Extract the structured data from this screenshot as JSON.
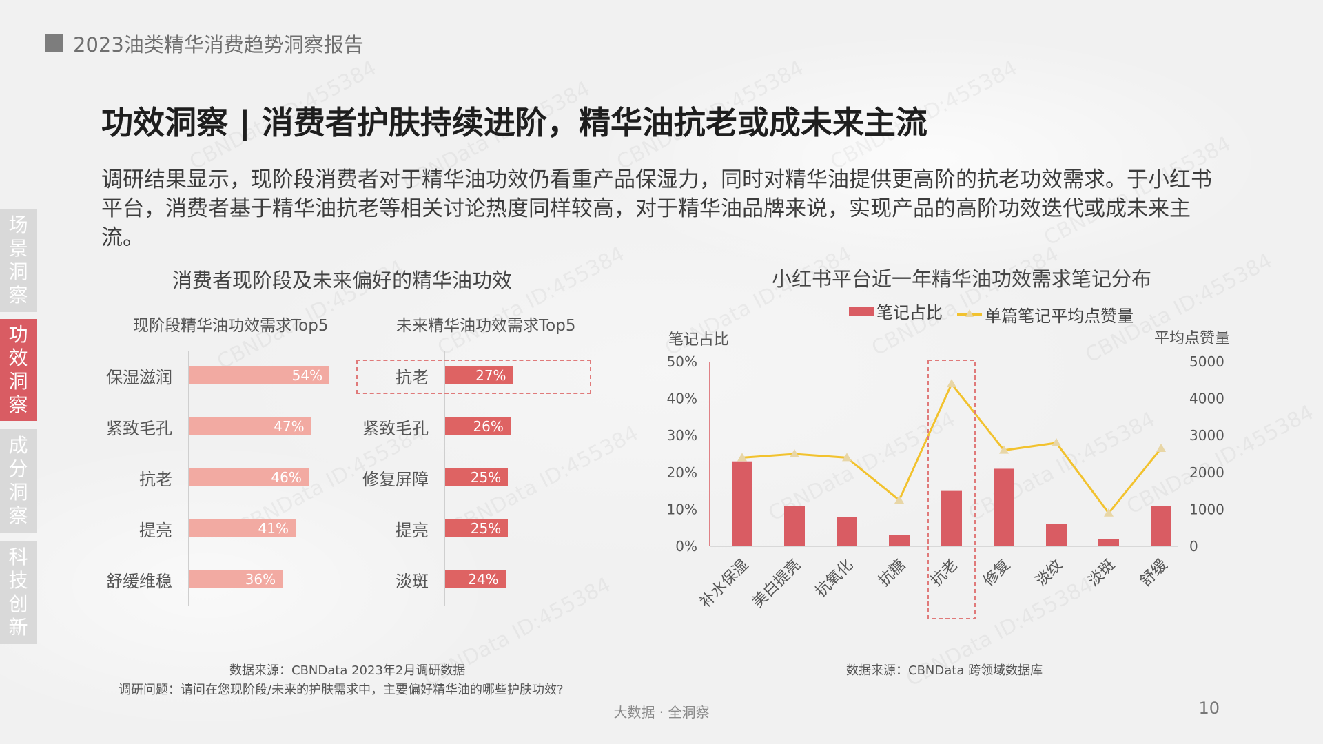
{
  "header": {
    "report_title": "2023油类精华消费趋势洞察报告"
  },
  "main_title": "功效洞察 | 消费者护肤持续进阶，精华油抗老或成未来主流",
  "intro_text": "调研结果显示，现阶段消费者对于精华油功效仍看重产品保湿力，同时对精华油提供更高阶的抗老功效需求。于小红书平台，消费者基于精华油抗老等相关讨论热度同样较高，对于精华油品牌来说，实现产品的高阶功效迭代或成未来主流。",
  "side_nav": [
    {
      "label": "场景洞察",
      "active": false
    },
    {
      "label": "功效洞察",
      "active": true
    },
    {
      "label": "成分洞察",
      "active": false
    },
    {
      "label": "科技创新",
      "active": false
    }
  ],
  "left_panel": {
    "source": "数据来源：CBNData 2023年2月调研数据",
    "question": "调研问题：请问在您现阶段/未来的护肤需求中，主要偏好精华油的哪些护肤功效?"
  },
  "right_panel": {
    "source": "数据来源：CBNData 跨领域数据库"
  },
  "chart_data": [
    {
      "type": "bar",
      "orientation": "horizontal",
      "title": "消费者现阶段及未来偏好的精华油功效",
      "subtitle": "现阶段精华油功效需求Top5",
      "categories": [
        "保湿滋润",
        "紧致毛孔",
        "抗老",
        "提亮",
        "舒缓维稳"
      ],
      "values": [
        54,
        47,
        46,
        41,
        36
      ],
      "value_labels": [
        "54%",
        "47%",
        "46%",
        "41%",
        "36%"
      ],
      "unit": "%",
      "color": "#f2aaa2"
    },
    {
      "type": "bar",
      "orientation": "horizontal",
      "subtitle": "未来精华油功效需求Top5",
      "categories": [
        "抗老",
        "紧致毛孔",
        "修复屏障",
        "提亮",
        "淡斑"
      ],
      "values": [
        27,
        26,
        25,
        25,
        24
      ],
      "value_labels": [
        "27%",
        "26%",
        "25%",
        "25%",
        "24%"
      ],
      "unit": "%",
      "highlight": "抗老",
      "color": "#de6363"
    },
    {
      "type": "bar",
      "title": "小红书平台近一年精华油功效需求笔记分布",
      "categories": [
        "补水保湿",
        "美白提亮",
        "抗氧化",
        "抗糖",
        "抗老",
        "修复",
        "淡纹",
        "淡斑",
        "舒缓"
      ],
      "series": [
        {
          "name": "笔记占比",
          "type": "bar",
          "axis": "left",
          "color": "#d95c63",
          "values": [
            23,
            11,
            8,
            3,
            15,
            21,
            6,
            2,
            11
          ]
        },
        {
          "name": "单篇笔记平均点赞量",
          "type": "line",
          "axis": "right",
          "color": "#f2c22e",
          "values": [
            2400,
            2500,
            2400,
            1250,
            4400,
            2600,
            2800,
            900,
            2650
          ]
        }
      ],
      "ylabel": "笔记占比",
      "ylabel_right": "平均点赞量",
      "ylim": [
        0,
        50
      ],
      "y_ticks": [
        "0%",
        "10%",
        "20%",
        "30%",
        "40%",
        "50%"
      ],
      "ylim_right": [
        0,
        5000
      ],
      "y_right_ticks": [
        "0",
        "1000",
        "2000",
        "3000",
        "4000",
        "5000"
      ],
      "legend_position": "top",
      "highlight": "抗老"
    }
  ],
  "footer": {
    "center": "大数据 · 全洞察",
    "page_number": "10"
  },
  "watermark_text": "CBNData ID:455384"
}
